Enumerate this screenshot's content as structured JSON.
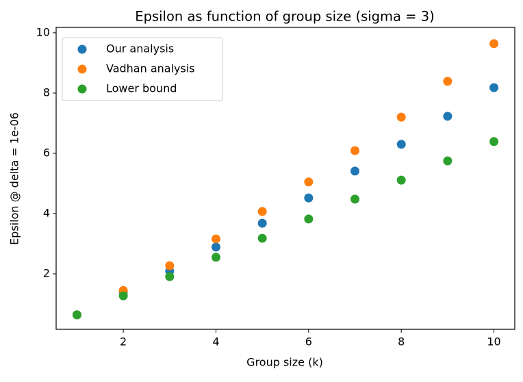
{
  "chart_data": {
    "type": "scatter",
    "title": "Epsilon as function of group size (sigma = 3)",
    "x_label": "Group size (k)",
    "y_label": "Epsilon @ delta = 1e-06",
    "x": [
      1,
      2,
      3,
      4,
      5,
      6,
      7,
      8,
      9,
      10
    ],
    "series": [
      {
        "name": "Our analysis",
        "color": "#1f77b4",
        "values": [
          0.64,
          1.4,
          2.09,
          2.89,
          3.68,
          4.52,
          5.41,
          6.3,
          7.23,
          8.18
        ]
      },
      {
        "name": "Vadhan analysis",
        "color": "#ff7f0e",
        "values": [
          0.64,
          1.45,
          2.27,
          3.16,
          4.07,
          5.05,
          6.09,
          7.2,
          8.39,
          9.64
        ]
      },
      {
        "name": "Lower bound",
        "color": "#2ca02c",
        "values": [
          0.64,
          1.27,
          1.91,
          2.55,
          3.18,
          3.82,
          4.48,
          5.11,
          5.75,
          6.39
        ]
      }
    ],
    "xlim": [
      0.55,
      10.45
    ],
    "ylim": [
      0.16,
      10.18
    ],
    "xticks": [
      2,
      4,
      6,
      8,
      10
    ],
    "yticks": [
      2,
      4,
      6,
      8,
      10
    ],
    "legend": "upper-left"
  }
}
